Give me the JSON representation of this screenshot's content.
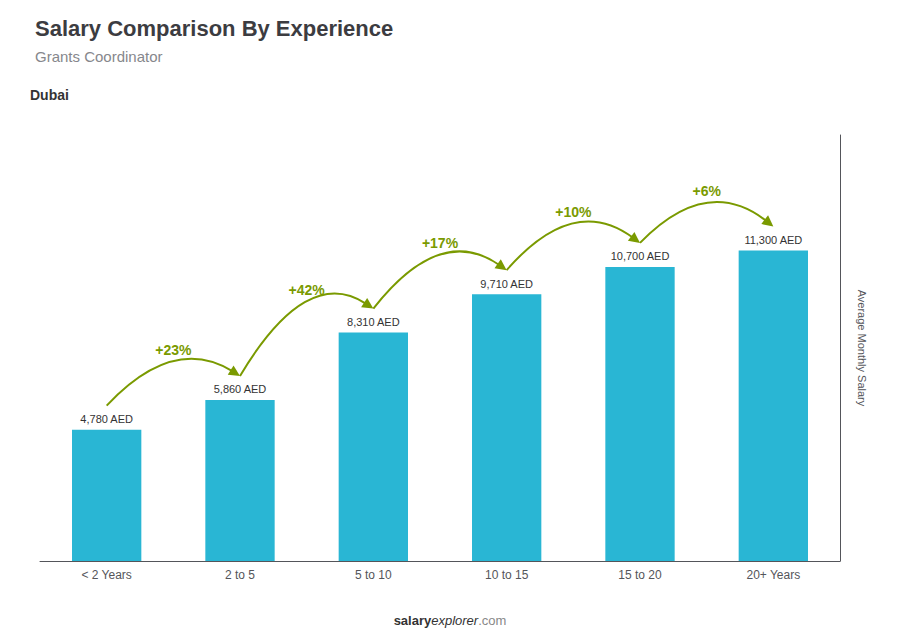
{
  "chart_data": {
    "type": "bar",
    "title": "Salary Comparison By Experience",
    "subtitle": "Grants Coordinator",
    "city": "Dubai",
    "ylabel": "Average Monthly Salary",
    "categories": [
      "< 2 Years",
      "2 to 5",
      "5 to 10",
      "10 to 15",
      "15 to 20",
      "20+ Years"
    ],
    "values": [
      4780,
      5860,
      8310,
      9710,
      10700,
      11300
    ],
    "value_labels": [
      "4,780 AED",
      "5,860 AED",
      "8,310 AED",
      "9,710 AED",
      "10,700 AED",
      "11,300 AED"
    ],
    "annotations": [
      null,
      "+23%",
      "+42%",
      "+17%",
      "+10%",
      "+6%"
    ],
    "footer": [
      "salary",
      "explorer",
      ".com"
    ],
    "color": "#29b6d4",
    "ylim": [
      0,
      15500
    ],
    "data_labels": true,
    "tick_labels": "x",
    "grid": false
  }
}
